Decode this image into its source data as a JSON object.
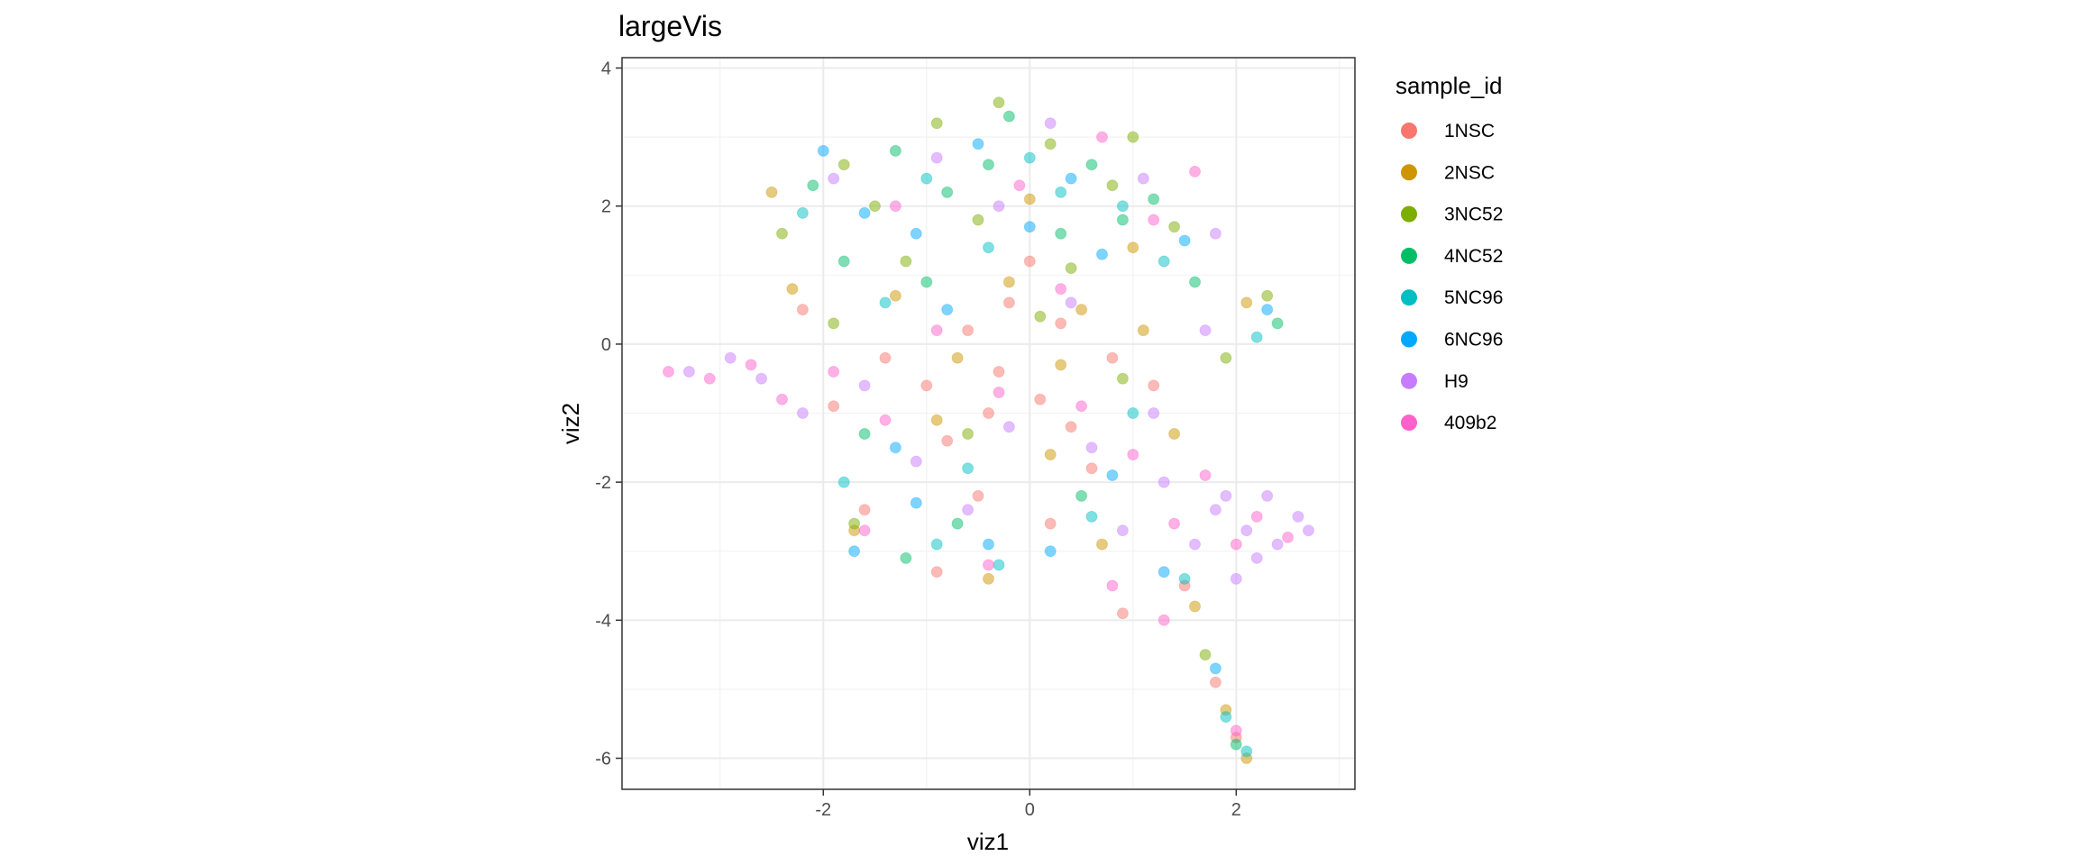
{
  "chart_data": {
    "type": "scatter",
    "title": "largeVis",
    "xlabel": "viz1",
    "ylabel": "viz2",
    "xlim": [
      -3.95,
      3.15
    ],
    "ylim": [
      -6.45,
      4.15
    ],
    "x_ticks": [
      -2,
      0,
      2
    ],
    "y_ticks": [
      4,
      2,
      0,
      -2,
      -4,
      -6
    ],
    "x_tick_labels": [
      "-2",
      "0",
      "2"
    ],
    "y_tick_labels": [
      "4",
      "2",
      "0",
      "-2",
      "-4",
      "-6"
    ],
    "grid": true,
    "legend_title": "sample_id",
    "legend_position": "right",
    "point_opacity": 0.5,
    "series": [
      {
        "name": "1NSC",
        "color": "#F8766D",
        "points": [
          [
            -0.3,
            -0.4
          ],
          [
            0.1,
            -0.8
          ],
          [
            -0.6,
            0.2
          ],
          [
            0.4,
            -1.2
          ],
          [
            -1.0,
            -0.6
          ],
          [
            0.8,
            -0.2
          ],
          [
            -0.2,
            0.6
          ],
          [
            0.3,
            0.3
          ],
          [
            -0.8,
            -1.4
          ],
          [
            0.6,
            -1.8
          ],
          [
            -1.4,
            -0.2
          ],
          [
            1.2,
            -0.6
          ],
          [
            -0.5,
            -2.2
          ],
          [
            0.2,
            -2.6
          ],
          [
            -1.6,
            -2.4
          ],
          [
            1.5,
            -3.5
          ],
          [
            1.8,
            -4.9
          ],
          [
            2.0,
            -5.7
          ],
          [
            -0.9,
            -3.3
          ],
          [
            0.9,
            -3.9
          ],
          [
            -2.2,
            0.5
          ],
          [
            -1.9,
            -0.9
          ],
          [
            0.0,
            1.2
          ],
          [
            -0.4,
            -1.0
          ]
        ]
      },
      {
        "name": "2NSC",
        "color": "#CD9600",
        "points": [
          [
            -0.2,
            0.9
          ],
          [
            0.5,
            0.5
          ],
          [
            -0.7,
            -0.2
          ],
          [
            1.1,
            0.2
          ],
          [
            -1.3,
            0.7
          ],
          [
            0.2,
            -1.6
          ],
          [
            -0.9,
            -1.1
          ],
          [
            1.4,
            -1.3
          ],
          [
            2.1,
            0.6
          ],
          [
            1.6,
            -3.8
          ],
          [
            1.9,
            -5.3
          ],
          [
            2.1,
            -6.0
          ],
          [
            -2.3,
            0.8
          ],
          [
            -0.4,
            -3.4
          ],
          [
            0.7,
            -2.9
          ],
          [
            -1.7,
            -2.7
          ],
          [
            0.0,
            2.1
          ],
          [
            1.0,
            1.4
          ],
          [
            -2.5,
            2.2
          ],
          [
            0.3,
            -0.3
          ]
        ]
      },
      {
        "name": "3NC52",
        "color": "#7CAE00",
        "points": [
          [
            -1.8,
            2.6
          ],
          [
            -0.9,
            3.2
          ],
          [
            0.2,
            2.9
          ],
          [
            -0.5,
            1.8
          ],
          [
            0.8,
            2.3
          ],
          [
            -2.4,
            1.6
          ],
          [
            -1.2,
            1.2
          ],
          [
            1.4,
            1.7
          ],
          [
            0.4,
            1.1
          ],
          [
            -1.9,
            0.3
          ],
          [
            2.3,
            0.7
          ],
          [
            -0.6,
            -1.3
          ],
          [
            0.9,
            -0.5
          ],
          [
            -1.7,
            -2.6
          ],
          [
            1.7,
            -4.5
          ],
          [
            -0.3,
            3.5
          ],
          [
            1.0,
            3.0
          ],
          [
            -1.5,
            2.0
          ],
          [
            0.1,
            0.4
          ],
          [
            1.9,
            -0.2
          ]
        ]
      },
      {
        "name": "4NC52",
        "color": "#00BE67",
        "points": [
          [
            -1.3,
            2.8
          ],
          [
            -0.2,
            3.3
          ],
          [
            0.6,
            2.6
          ],
          [
            -0.8,
            2.2
          ],
          [
            1.2,
            2.1
          ],
          [
            -2.1,
            2.3
          ],
          [
            -1.0,
            0.9
          ],
          [
            0.3,
            1.6
          ],
          [
            1.6,
            0.9
          ],
          [
            2.4,
            0.3
          ],
          [
            -0.7,
            -2.6
          ],
          [
            -1.2,
            -3.1
          ],
          [
            0.5,
            -2.2
          ],
          [
            -1.6,
            -1.3
          ],
          [
            2.0,
            -5.8
          ],
          [
            -0.4,
            2.6
          ],
          [
            0.9,
            1.8
          ],
          [
            -1.8,
            1.2
          ]
        ]
      },
      {
        "name": "5NC96",
        "color": "#00BFC4",
        "points": [
          [
            -1.0,
            2.4
          ],
          [
            0.0,
            2.7
          ],
          [
            0.9,
            2.0
          ],
          [
            -0.4,
            1.4
          ],
          [
            1.3,
            1.2
          ],
          [
            -2.2,
            1.9
          ],
          [
            -1.4,
            0.6
          ],
          [
            2.2,
            0.1
          ],
          [
            -0.9,
            -2.9
          ],
          [
            -0.3,
            -3.2
          ],
          [
            0.6,
            -2.5
          ],
          [
            -1.8,
            -2.0
          ],
          [
            1.5,
            -3.4
          ],
          [
            1.9,
            -5.4
          ],
          [
            2.1,
            -5.9
          ],
          [
            0.3,
            2.2
          ],
          [
            -0.6,
            -1.8
          ],
          [
            1.0,
            -1.0
          ]
        ]
      },
      {
        "name": "6NC96",
        "color": "#00A9FF",
        "points": [
          [
            -1.6,
            1.9
          ],
          [
            -0.5,
            2.9
          ],
          [
            0.4,
            2.4
          ],
          [
            -1.1,
            1.6
          ],
          [
            0.7,
            1.3
          ],
          [
            -2.0,
            2.8
          ],
          [
            -0.8,
            0.5
          ],
          [
            1.5,
            1.5
          ],
          [
            2.3,
            0.5
          ],
          [
            -1.1,
            -2.3
          ],
          [
            -0.4,
            -2.9
          ],
          [
            0.2,
            -3.0
          ],
          [
            1.3,
            -3.3
          ],
          [
            -1.7,
            -3.0
          ],
          [
            1.8,
            -4.7
          ],
          [
            0.0,
            1.7
          ],
          [
            -1.3,
            -1.5
          ],
          [
            0.8,
            -1.9
          ]
        ]
      },
      {
        "name": "H9",
        "color": "#C77CFF",
        "points": [
          [
            -3.3,
            -0.4
          ],
          [
            -2.9,
            -0.2
          ],
          [
            -2.6,
            -0.5
          ],
          [
            -2.2,
            -1.0
          ],
          [
            -1.6,
            -0.6
          ],
          [
            -1.1,
            -1.7
          ],
          [
            -0.2,
            -1.2
          ],
          [
            0.6,
            -1.5
          ],
          [
            1.3,
            -2.0
          ],
          [
            1.8,
            -2.4
          ],
          [
            2.1,
            -2.7
          ],
          [
            2.4,
            -2.9
          ],
          [
            2.6,
            -2.5
          ],
          [
            2.2,
            -3.1
          ],
          [
            1.9,
            -2.2
          ],
          [
            2.7,
            -2.7
          ],
          [
            1.6,
            -2.9
          ],
          [
            2.3,
            -2.2
          ],
          [
            2.0,
            -3.4
          ],
          [
            1.2,
            -1.0
          ],
          [
            0.4,
            0.6
          ],
          [
            1.1,
            2.4
          ],
          [
            1.8,
            1.6
          ],
          [
            -0.3,
            2.0
          ],
          [
            0.2,
            3.2
          ],
          [
            -0.9,
            2.7
          ],
          [
            -1.9,
            2.4
          ],
          [
            1.7,
            0.2
          ],
          [
            -0.6,
            -2.4
          ],
          [
            0.9,
            -2.7
          ]
        ]
      },
      {
        "name": "409b2",
        "color": "#FF61CC",
        "points": [
          [
            -3.5,
            -0.4
          ],
          [
            -3.1,
            -0.5
          ],
          [
            -2.7,
            -0.3
          ],
          [
            -2.4,
            -0.8
          ],
          [
            -1.9,
            -0.4
          ],
          [
            -1.4,
            -1.1
          ],
          [
            -0.9,
            0.2
          ],
          [
            -0.3,
            -0.7
          ],
          [
            0.5,
            -0.9
          ],
          [
            1.0,
            -1.6
          ],
          [
            1.7,
            -1.9
          ],
          [
            2.2,
            -2.5
          ],
          [
            2.5,
            -2.8
          ],
          [
            2.0,
            -2.9
          ],
          [
            1.4,
            -2.6
          ],
          [
            0.3,
            0.8
          ],
          [
            1.2,
            1.8
          ],
          [
            1.6,
            2.5
          ],
          [
            0.7,
            3.0
          ],
          [
            -1.6,
            -2.7
          ],
          [
            -0.4,
            -3.2
          ],
          [
            0.8,
            -3.5
          ],
          [
            1.3,
            -4.0
          ],
          [
            2.0,
            -5.6
          ],
          [
            -1.3,
            2.0
          ],
          [
            -0.1,
            2.3
          ]
        ]
      }
    ]
  }
}
